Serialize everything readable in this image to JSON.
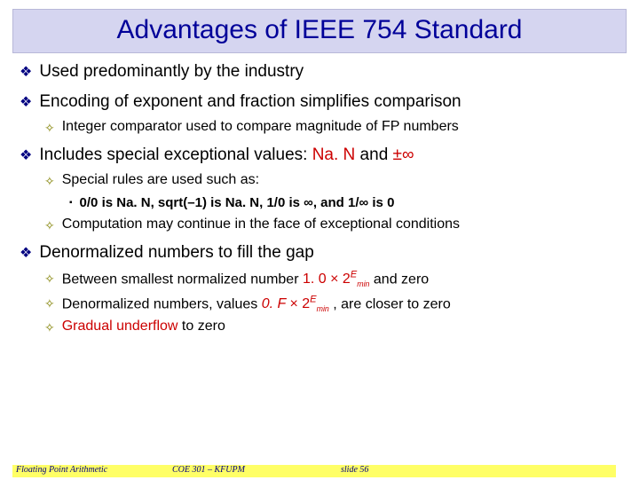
{
  "title": "Advantages of IEEE 754 Standard",
  "bullets": {
    "b1": "Used predominantly by the industry",
    "b2": "Encoding of exponent and fraction simplifies comparison",
    "b2_1": "Integer comparator used to compare magnitude of FP numbers",
    "b3_pre": "Includes special exceptional values: ",
    "b3_nan": "Na. N",
    "b3_mid": " and ",
    "b3_inf": "±∞",
    "b3_1": "Special rules are used such as:",
    "b3_1_1": "0/0 is Na. N, sqrt(–1) is Na. N, 1/0 is ∞, and 1/∞ is 0",
    "b3_2": "Computation may continue in the face of exceptional conditions",
    "b4": "Denormalized numbers to fill the gap",
    "b4_1_pre": "Between smallest normalized number ",
    "b4_1_expr_a": "1. 0 × 2",
    "b4_1_exp": "E",
    "b4_1_min": "min",
    "b4_1_post": " and zero",
    "b4_2_pre": "Denormalized numbers, values  ",
    "b4_2_expr_a": "0. F ",
    "b4_2_times": "× ",
    "b4_2_base": "2",
    "b4_2_post": " , are closer to zero",
    "b4_3_pre": "Gradual underflow",
    "b4_3_post": " to zero"
  },
  "footer": {
    "f1": "Floating Point Arithmetic",
    "f2": "COE 301 – KFUPM",
    "f3": "slide 56"
  },
  "colors": {
    "title_bg": "#d5d5f0",
    "title_fg": "#000099",
    "accent_red": "#cc0000",
    "footer_bg": "#ffff66",
    "footer_fg": "#000080",
    "bullet1": "#000080",
    "bullet2": "#808000"
  }
}
